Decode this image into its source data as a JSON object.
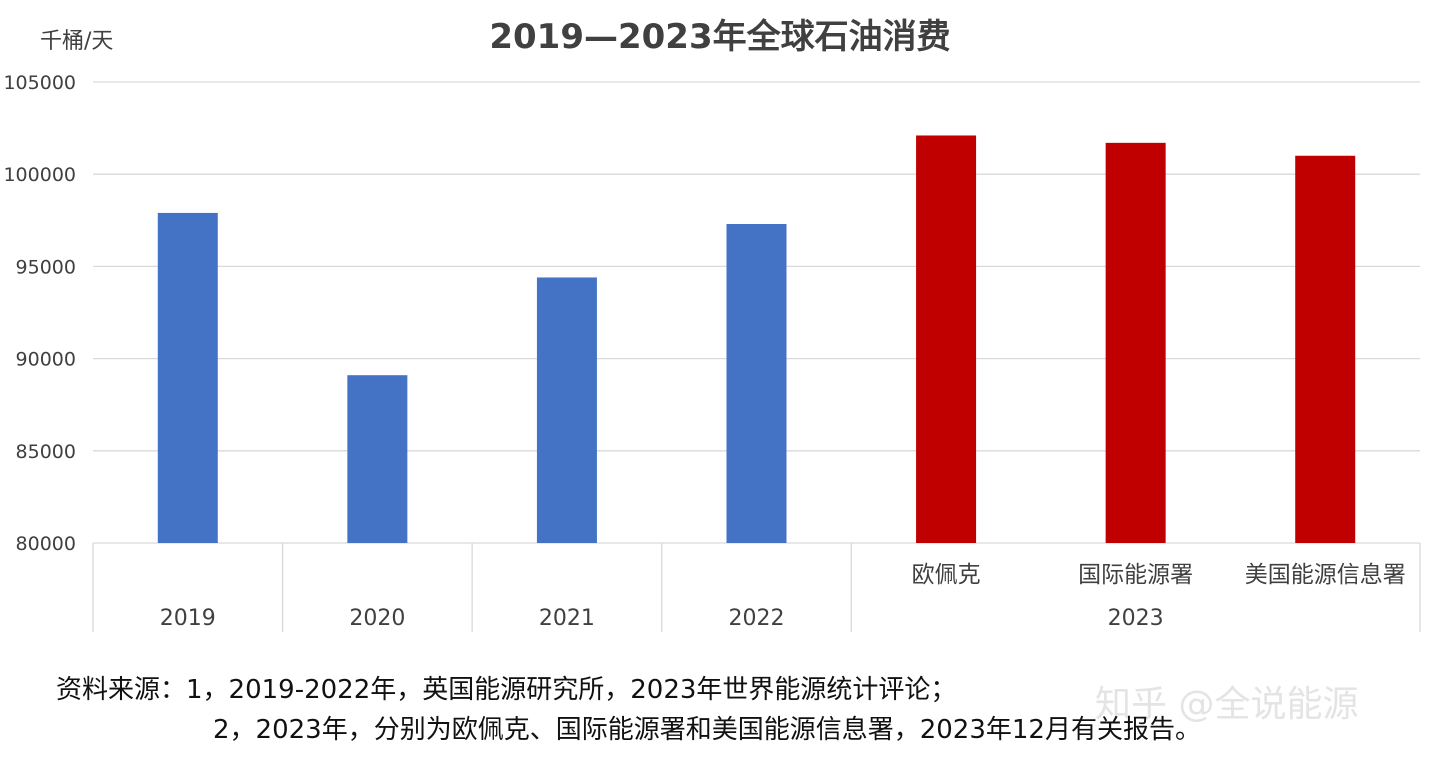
{
  "chart_data": {
    "type": "bar",
    "title": "2019—2023年全球石油消费",
    "ylabel": "千桶/天",
    "ylim": [
      80000,
      105000
    ],
    "yticks": [
      80000,
      85000,
      90000,
      95000,
      100000,
      105000
    ],
    "grid": true,
    "categories": [
      {
        "label": "2019",
        "group": "2019",
        "value": 97900,
        "color": "#4472c4"
      },
      {
        "label": "2020",
        "group": "2020",
        "value": 89100,
        "color": "#4472c4"
      },
      {
        "label": "2021",
        "group": "2021",
        "value": 94400,
        "color": "#4472c4"
      },
      {
        "label": "2022",
        "group": "2022",
        "value": 97300,
        "color": "#4472c4"
      },
      {
        "label": "欧佩克",
        "group": "2023",
        "value": 102100,
        "color": "#c00000"
      },
      {
        "label": "国际能源署",
        "group": "2023",
        "value": 101700,
        "color": "#c00000"
      },
      {
        "label": "美国能源信息署",
        "group": "2023",
        "value": 101000,
        "color": "#c00000"
      }
    ],
    "group_labels": [
      "2019",
      "2020",
      "2021",
      "2022",
      "2023"
    ]
  },
  "source": {
    "line1": "资料来源：1，2019-2022年，英国能源研究所，2023年世界能源统计评论；",
    "line2": "2，2023年，分别为欧佩克、国际能源署和美国能源信息署，2023年12月有关报告。"
  },
  "watermark": "知乎 @全说能源"
}
